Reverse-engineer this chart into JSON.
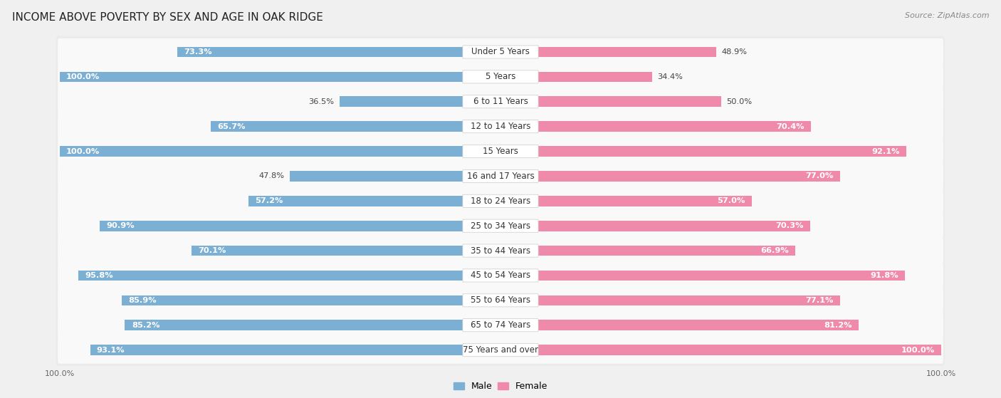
{
  "title": "INCOME ABOVE POVERTY BY SEX AND AGE IN OAK RIDGE",
  "source": "Source: ZipAtlas.com",
  "categories": [
    "Under 5 Years",
    "5 Years",
    "6 to 11 Years",
    "12 to 14 Years",
    "15 Years",
    "16 and 17 Years",
    "18 to 24 Years",
    "25 to 34 Years",
    "35 to 44 Years",
    "45 to 54 Years",
    "55 to 64 Years",
    "65 to 74 Years",
    "75 Years and over"
  ],
  "male_values": [
    73.3,
    100.0,
    36.5,
    65.7,
    100.0,
    47.8,
    57.2,
    90.9,
    70.1,
    95.8,
    85.9,
    85.2,
    93.1
  ],
  "female_values": [
    48.9,
    34.4,
    50.0,
    70.4,
    92.1,
    77.0,
    57.0,
    70.3,
    66.9,
    91.8,
    77.1,
    81.2,
    100.0
  ],
  "male_color": "#7bafd4",
  "female_color": "#f08aaa",
  "male_label": "Male",
  "female_label": "Female",
  "max_value": 100.0,
  "bg_color": "#f0f0f0",
  "bar_bg_color": "#e8e8e8",
  "row_bg_color": "#f7f7f7",
  "title_fontsize": 11,
  "label_fontsize": 8.5,
  "value_fontsize": 8.2,
  "source_fontsize": 8,
  "legend_fontsize": 9,
  "axis_label_fontsize": 8
}
